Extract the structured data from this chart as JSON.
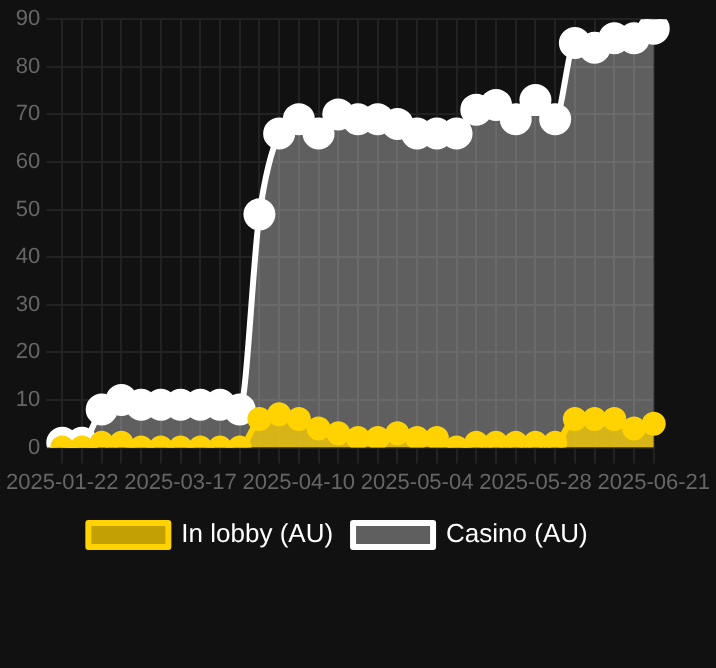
{
  "chart_data": {
    "type": "area",
    "categories": [
      "2025-01-22",
      null,
      null,
      null,
      null,
      null,
      "2025-03-17",
      null,
      null,
      null,
      null,
      null,
      "2025-04-10",
      null,
      null,
      null,
      null,
      null,
      "2025-05-04",
      null,
      null,
      null,
      null,
      null,
      "2025-05-28",
      null,
      null,
      null,
      null,
      null,
      "2025-06-21"
    ],
    "series": [
      {
        "name": "In lobby (AU)",
        "color": "#ffd200",
        "values": [
          0,
          0,
          1,
          1,
          0,
          0,
          0,
          0,
          0,
          0,
          6,
          7,
          6,
          4,
          3,
          2,
          2,
          3,
          2,
          2,
          0,
          1,
          1,
          1,
          1,
          1,
          6,
          6,
          6,
          4,
          5
        ]
      },
      {
        "name": "Casino (AU)",
        "color": "#ffffff",
        "values": [
          1,
          1,
          8,
          10,
          9,
          9,
          9,
          9,
          9,
          8,
          49,
          66,
          69,
          66,
          70,
          69,
          69,
          68,
          66,
          66,
          66,
          71,
          72,
          69,
          73,
          69,
          85,
          84,
          86,
          86,
          88
        ]
      }
    ],
    "ylim": [
      0,
      90
    ],
    "yticks": [
      0,
      10,
      20,
      30,
      40,
      50,
      60,
      70,
      80,
      90
    ],
    "grid": true,
    "legend": "bottom",
    "marker": "circle"
  }
}
